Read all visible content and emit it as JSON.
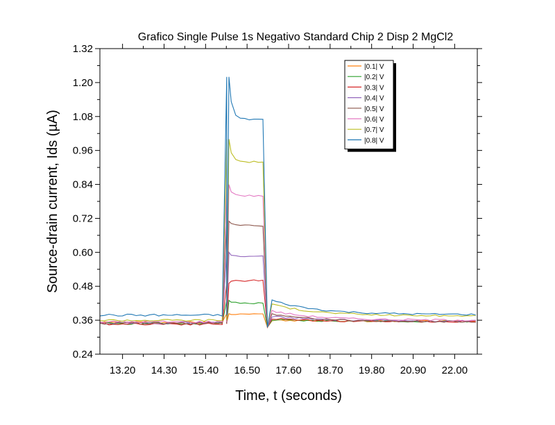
{
  "chart_data": {
    "type": "line",
    "title": "Grafico Single Pulse 1s Negativo Standard Chip 2 Disp 2 MgCl2",
    "xlabel": "Time, t (seconds)",
    "ylabel": "Source-drain current, Ids (µA)",
    "xlim": [
      12.6,
      22.6
    ],
    "ylim": [
      0.24,
      1.32
    ],
    "x_ticks": [
      13.2,
      14.3,
      15.4,
      16.5,
      17.6,
      18.7,
      19.8,
      20.9,
      22.0
    ],
    "x_tick_labels": [
      "13.20",
      "14.30",
      "15.40",
      "16.50",
      "17.60",
      "18.70",
      "19.80",
      "20.90",
      "22.00"
    ],
    "y_ticks": [
      0.24,
      0.36,
      0.48,
      0.6,
      0.72,
      0.84,
      0.96,
      1.08,
      1.2,
      1.32
    ],
    "y_tick_labels": [
      "0.24",
      "0.36",
      "0.48",
      "0.60",
      "0.72",
      "0.84",
      "0.96",
      "1.08",
      "1.20",
      "1.32"
    ],
    "pulse": {
      "t_on": 16.0,
      "t_off": 17.05
    },
    "legend_position": "top-right",
    "series": [
      {
        "name": "|0.1| V",
        "color": "#ff7f0e",
        "base": 0.352,
        "peak": 0.383,
        "plateau": 0.383,
        "tail": 0.357
      },
      {
        "name": "|0.2| V",
        "color": "#2ca02c",
        "base": 0.349,
        "peak": 0.43,
        "plateau": 0.42,
        "tail": 0.356
      },
      {
        "name": "|0.3| V",
        "color": "#d62728",
        "base": 0.347,
        "peak": 0.49,
        "plateau": 0.5,
        "tail": 0.355
      },
      {
        "name": "|0.4| V",
        "color": "#9467bd",
        "base": 0.35,
        "peak": 0.6,
        "plateau": 0.585,
        "tail": 0.357
      },
      {
        "name": "|0.5| V",
        "color": "#8c564b",
        "base": 0.349,
        "peak": 0.71,
        "plateau": 0.695,
        "tail": 0.355
      },
      {
        "name": "|0.6| V",
        "color": "#e377c2",
        "base": 0.354,
        "peak": 0.84,
        "plateau": 0.8,
        "tail": 0.36
      },
      {
        "name": "|0.7| V",
        "color": "#bcbd22",
        "base": 0.36,
        "peak": 1.0,
        "plateau": 0.92,
        "tail": 0.375
      },
      {
        "name": "|0.8| V",
        "color": "#1f77b4",
        "base": 0.378,
        "peak": 1.22,
        "plateau": 1.07,
        "tail": 0.38
      }
    ]
  }
}
